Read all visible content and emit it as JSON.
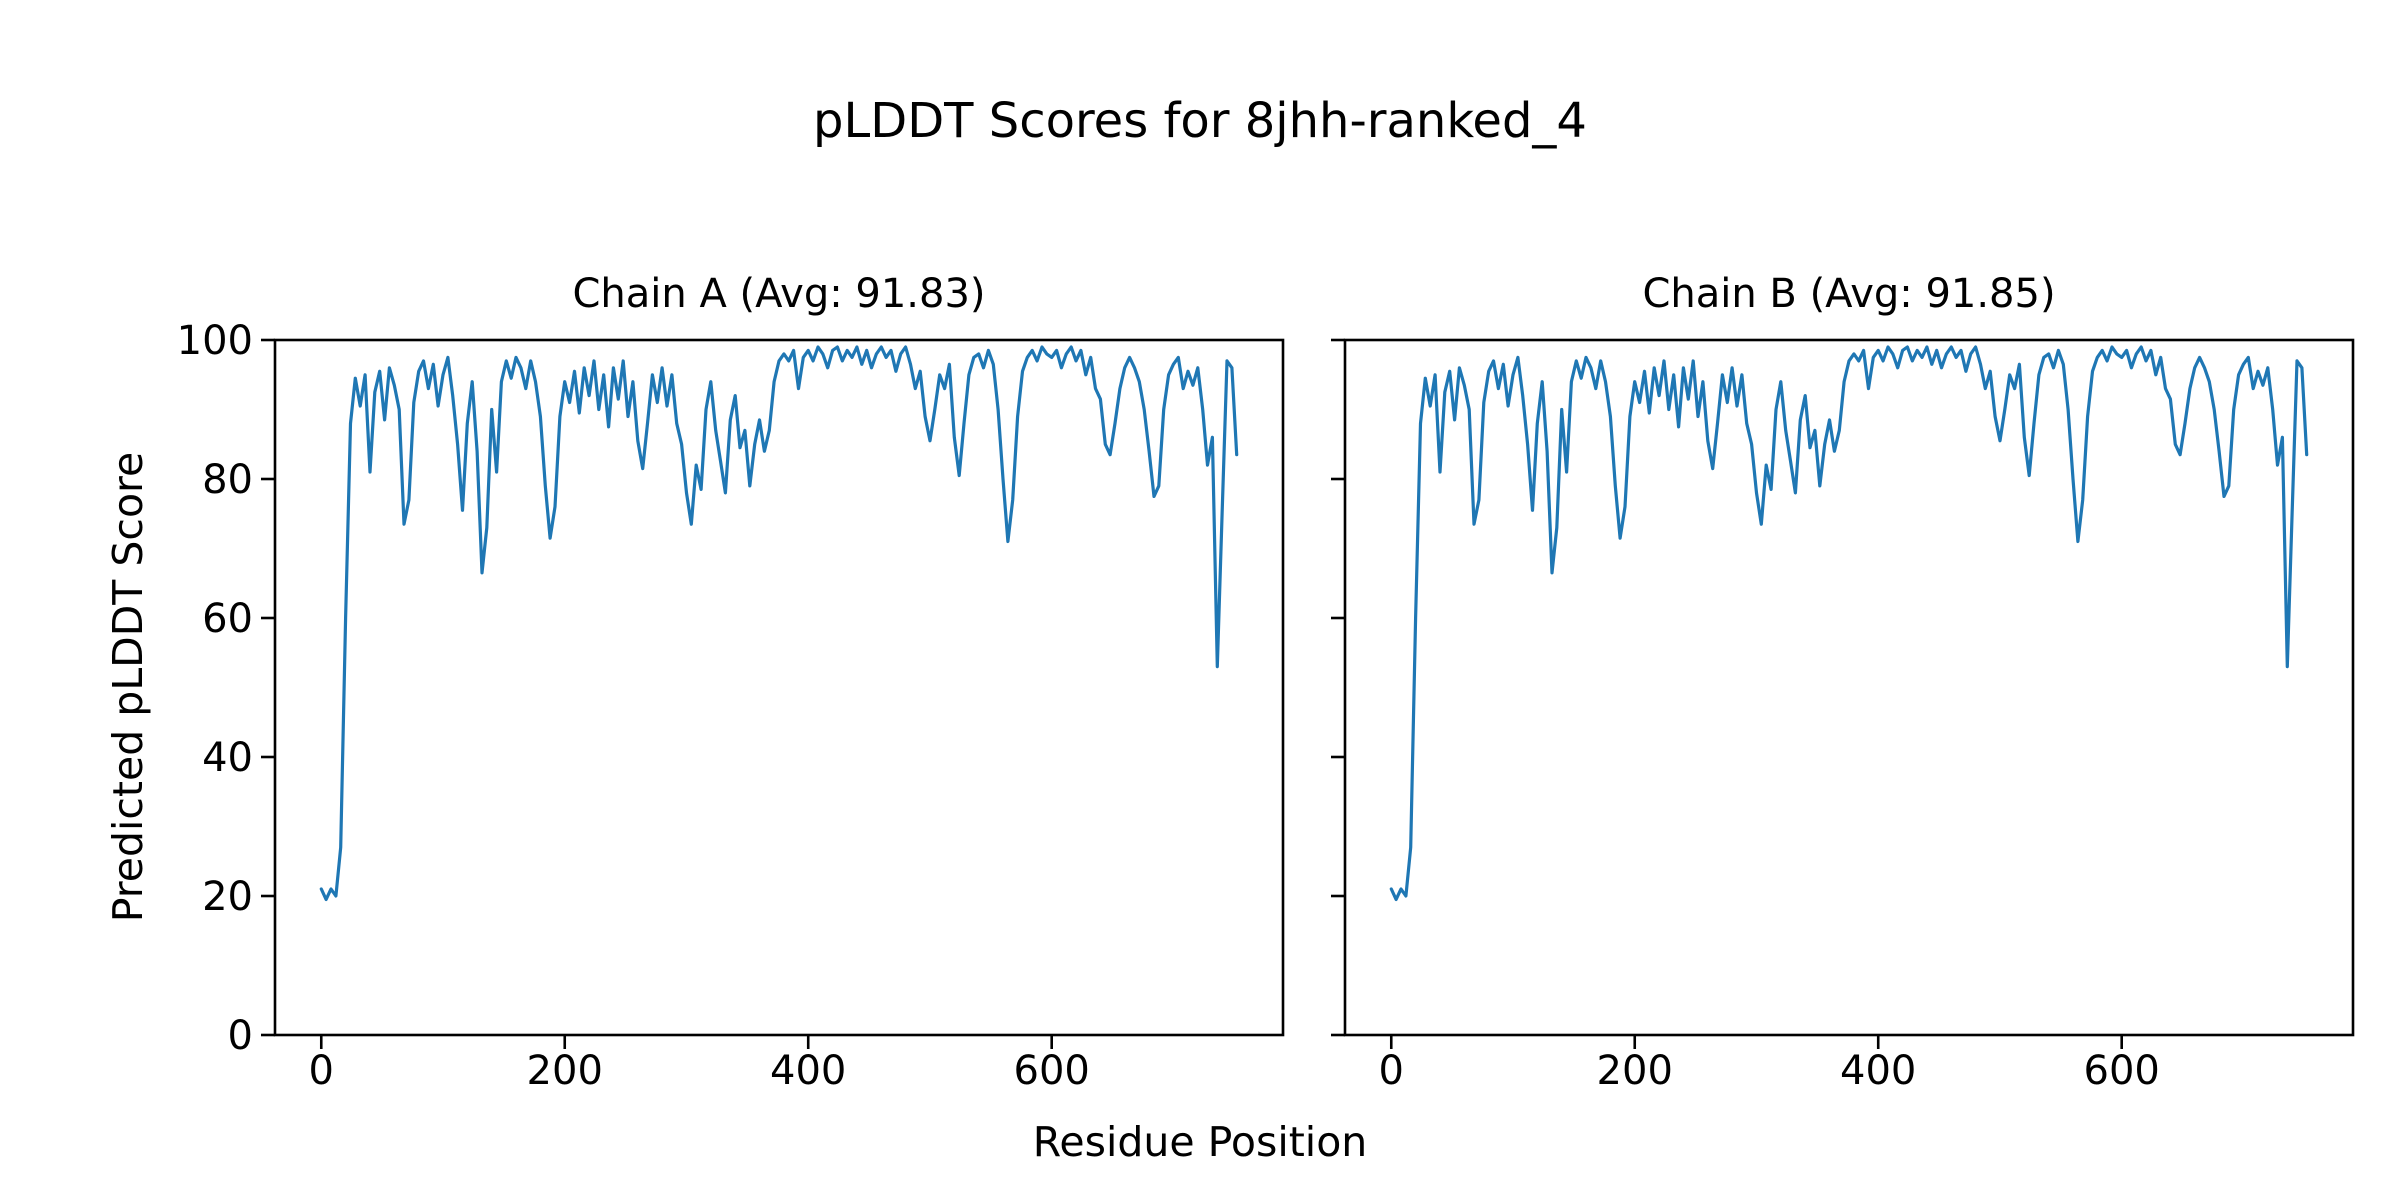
{
  "figure": {
    "title": "pLDDT Scores for 8jhh-ranked_4",
    "xlabel": "Residue Position",
    "ylabel": "Predicted pLDDT Score",
    "background_color": "#ffffff",
    "axis_color": "#000000",
    "text_color": "#000000"
  },
  "chart_data": [
    {
      "type": "line",
      "title": "Chain A (Avg: 91.83)",
      "series_name": "Chain A pLDDT",
      "avg": 91.83,
      "line_color": "#1f77b4",
      "grid": false,
      "legend": "none",
      "xlim": [
        -38,
        790
      ],
      "ylim": [
        0,
        100
      ],
      "xticks": [
        0,
        200,
        400,
        600
      ],
      "yticks": [
        0,
        20,
        40,
        60,
        80,
        100
      ],
      "show_y_tick_labels": true,
      "x_start": 0,
      "x_step": 4,
      "values": [
        21,
        19.5,
        21,
        20,
        27,
        60,
        88,
        94.5,
        90.5,
        95,
        81,
        92.5,
        95.5,
        88.5,
        96,
        93.5,
        90,
        73.5,
        77,
        91,
        95.5,
        97,
        93,
        96.5,
        90.5,
        95,
        97.5,
        92,
        85,
        75.5,
        88,
        94,
        84,
        66.5,
        73,
        90,
        81,
        94,
        97,
        94.5,
        97.5,
        96,
        93,
        97,
        94,
        89,
        79,
        71.5,
        76,
        89,
        94,
        91,
        95.5,
        89.5,
        96,
        92,
        97,
        90,
        95,
        87.5,
        96,
        91.5,
        97,
        89,
        94,
        85.5,
        81.5,
        88,
        95,
        91,
        96,
        90.5,
        95,
        88,
        85,
        78,
        73.5,
        82,
        78.5,
        90,
        94,
        87,
        82.5,
        78,
        88.5,
        92,
        84.5,
        87,
        79,
        85,
        88.5,
        84,
        87,
        94,
        97,
        98,
        97,
        98.5,
        93,
        97.5,
        98.5,
        97,
        99,
        98,
        96,
        98.5,
        99,
        97,
        98.5,
        97.5,
        99,
        96.5,
        98.5,
        96,
        98,
        99,
        97.5,
        98.5,
        95.5,
        98,
        99,
        96.5,
        93,
        95.5,
        89,
        85.5,
        90,
        95,
        93,
        96.5,
        86,
        80.5,
        88,
        95,
        97.5,
        98,
        96,
        98.5,
        96.5,
        90,
        80,
        71,
        77,
        89,
        95.5,
        97.5,
        98.5,
        97,
        99,
        98,
        97.5,
        98.5,
        96,
        98,
        99,
        97,
        98.5,
        95,
        97.5,
        93,
        91.5,
        85,
        83.5,
        88,
        93,
        96,
        97.5,
        96,
        94,
        90,
        84,
        77.5,
        79,
        90,
        95,
        96.5,
        97.5,
        93,
        95.5,
        93.5,
        96,
        90,
        82,
        86,
        53,
        75,
        97,
        96,
        83.5
      ]
    },
    {
      "type": "line",
      "title": "Chain B (Avg: 91.85)",
      "series_name": "Chain B pLDDT",
      "avg": 91.85,
      "line_color": "#1f77b4",
      "grid": false,
      "legend": "none",
      "xlim": [
        -38,
        790
      ],
      "ylim": [
        0,
        100
      ],
      "xticks": [
        0,
        200,
        400,
        600
      ],
      "yticks": [
        0,
        20,
        40,
        60,
        80,
        100
      ],
      "show_y_tick_labels": false,
      "x_start": 0,
      "x_step": 4,
      "values": [
        21,
        19.5,
        21,
        20,
        27,
        60,
        88,
        94.5,
        90.5,
        95,
        81,
        92.5,
        95.5,
        88.5,
        96,
        93.5,
        90,
        73.5,
        77,
        91,
        95.5,
        97,
        93,
        96.5,
        90.5,
        95,
        97.5,
        92,
        85,
        75.5,
        88,
        94,
        84,
        66.5,
        73,
        90,
        81,
        94,
        97,
        94.5,
        97.5,
        96,
        93,
        97,
        94,
        89,
        79,
        71.5,
        76,
        89,
        94,
        91,
        95.5,
        89.5,
        96,
        92,
        97,
        90,
        95,
        87.5,
        96,
        91.5,
        97,
        89,
        94,
        85.5,
        81.5,
        88,
        95,
        91,
        96,
        90.5,
        95,
        88,
        85,
        78,
        73.5,
        82,
        78.5,
        90,
        94,
        87,
        82.5,
        78,
        88.5,
        92,
        84.5,
        87,
        79,
        85,
        88.5,
        84,
        87,
        94,
        97,
        98,
        97,
        98.5,
        93,
        97.5,
        98.5,
        97,
        99,
        98,
        96,
        98.5,
        99,
        97,
        98.5,
        97.5,
        99,
        96.5,
        98.5,
        96,
        98,
        99,
        97.5,
        98.5,
        95.5,
        98,
        99,
        96.5,
        93,
        95.5,
        89,
        85.5,
        90,
        95,
        93,
        96.5,
        86,
        80.5,
        88,
        95,
        97.5,
        98,
        96,
        98.5,
        96.5,
        90,
        80,
        71,
        77,
        89,
        95.5,
        97.5,
        98.5,
        97,
        99,
        98,
        97.5,
        98.5,
        96,
        98,
        99,
        97,
        98.5,
        95,
        97.5,
        93,
        91.5,
        85,
        83.5,
        88,
        93,
        96,
        97.5,
        96,
        94,
        90,
        84,
        77.5,
        79,
        90,
        95,
        96.5,
        97.5,
        93,
        95.5,
        93.5,
        96,
        90,
        82,
        86,
        53,
        75,
        97,
        96,
        83.5
      ]
    }
  ]
}
